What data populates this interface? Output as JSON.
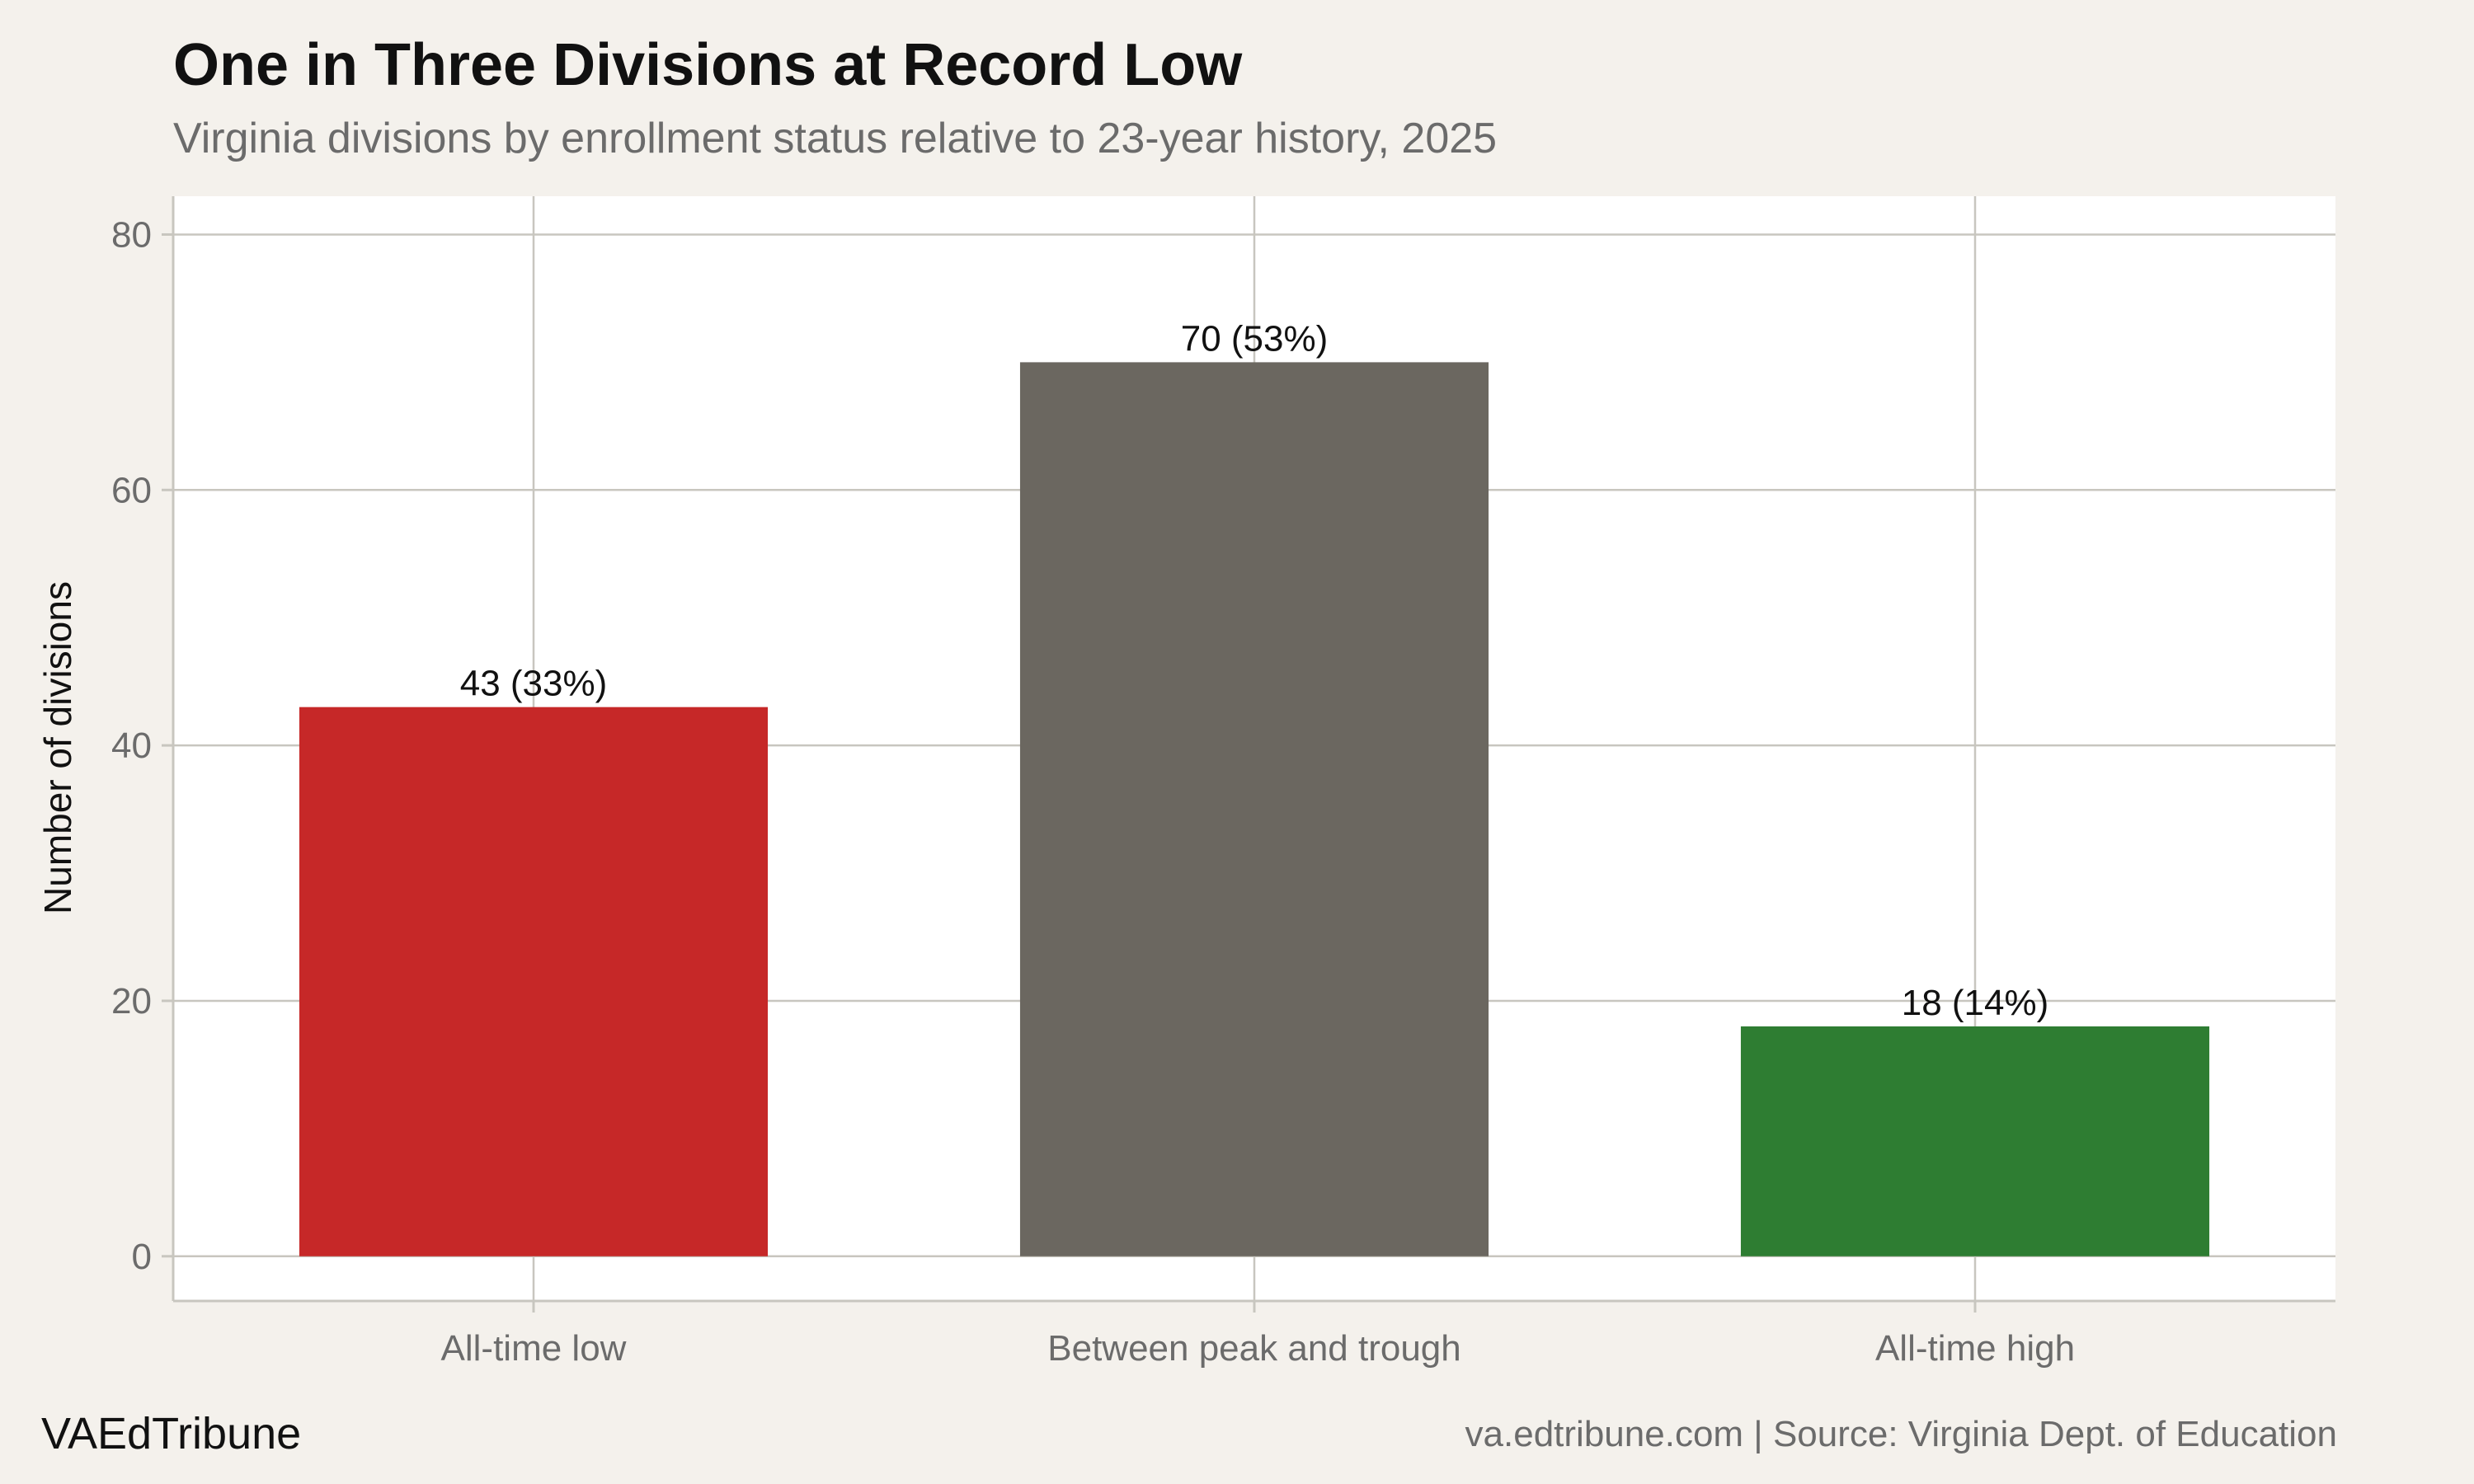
{
  "title": "One in Three Divisions at Record Low",
  "subtitle": "Virginia divisions by enrollment status relative to 23-year history, 2025",
  "brand": "VAEdTribune",
  "credit": "va.edtribune.com | Source: Virginia Dept. of Education",
  "colors": {
    "background": "#f4f1ec",
    "panel": "#ffffff",
    "grid": "#c8c6bf",
    "low": "#c62828",
    "between": "#6b6760",
    "high": "#2e7d32"
  },
  "chart_data": {
    "type": "bar",
    "categories": [
      "All-time low",
      "Between peak and trough",
      "All-time high"
    ],
    "values": [
      43,
      70,
      18
    ],
    "data_labels": [
      "43 (33%)",
      "70 (53%)",
      "18 (14%)"
    ],
    "bar_colors": [
      "#c62828",
      "#6b6760",
      "#2e7d32"
    ],
    "ylabel": "Number of divisions",
    "xlabel": "",
    "ylim": [
      -3.5,
      83
    ],
    "yticks": [
      0,
      20,
      40,
      60,
      80
    ],
    "grid": true,
    "legend": "none"
  }
}
